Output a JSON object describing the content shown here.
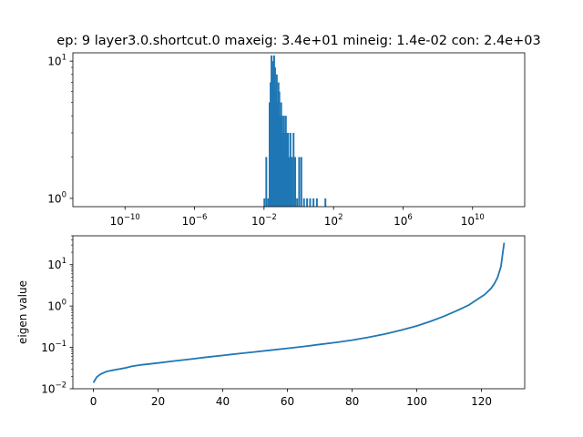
{
  "title": "ep: 9 layer3.0.shortcut.0 maxeig: 3.4e+01 mineig: 1.4e-02 con: 2.4e+03",
  "colors": {
    "series": "#1f77b4",
    "axis": "#000000",
    "background": "#ffffff"
  },
  "chart_data": [
    {
      "type": "bar",
      "subtype": "histogram",
      "xscale": "log",
      "yscale": "log",
      "xlim": [
        1e-13,
        10000000000000.0
      ],
      "ylim": [
        0.87,
        11.5
      ],
      "xticks": [
        {
          "value": 1e-10,
          "base": "10",
          "exp": "−10"
        },
        {
          "value": 1e-06,
          "base": "10",
          "exp": "−6"
        },
        {
          "value": 0.01,
          "base": "10",
          "exp": "−2"
        },
        {
          "value": 100.0,
          "base": "10",
          "exp": "2"
        },
        {
          "value": 1000000.0,
          "base": "10",
          "exp": "6"
        },
        {
          "value": 10000000000.0,
          "base": "10",
          "exp": "10"
        }
      ],
      "yticks": [
        {
          "value": 1,
          "base": "10",
          "exp": "0"
        },
        {
          "value": 10,
          "base": "10",
          "exp": "1"
        }
      ],
      "bins": [
        {
          "x": 0.0105,
          "count": 1
        },
        {
          "x": 0.0135,
          "count": 2
        },
        {
          "x": 0.0175,
          "count": 1
        },
        {
          "x": 0.021,
          "count": 5
        },
        {
          "x": 0.024,
          "count": 7
        },
        {
          "x": 0.027,
          "count": 11
        },
        {
          "x": 0.03,
          "count": 10
        },
        {
          "x": 0.034,
          "count": 8
        },
        {
          "x": 0.038,
          "count": 11
        },
        {
          "x": 0.043,
          "count": 9
        },
        {
          "x": 0.048,
          "count": 6
        },
        {
          "x": 0.054,
          "count": 8
        },
        {
          "x": 0.061,
          "count": 5
        },
        {
          "x": 0.068,
          "count": 7
        },
        {
          "x": 0.076,
          "count": 6
        },
        {
          "x": 0.086,
          "count": 4
        },
        {
          "x": 0.097,
          "count": 5
        },
        {
          "x": 0.11,
          "count": 4
        },
        {
          "x": 0.125,
          "count": 3
        },
        {
          "x": 0.14,
          "count": 4
        },
        {
          "x": 0.16,
          "count": 3
        },
        {
          "x": 0.18,
          "count": 4
        },
        {
          "x": 0.21,
          "count": 3
        },
        {
          "x": 0.24,
          "count": 3
        },
        {
          "x": 0.28,
          "count": 2
        },
        {
          "x": 0.33,
          "count": 3
        },
        {
          "x": 0.4,
          "count": 2
        },
        {
          "x": 0.5,
          "count": 3
        },
        {
          "x": 0.62,
          "count": 2
        },
        {
          "x": 0.8,
          "count": 1
        },
        {
          "x": 1.05,
          "count": 2
        },
        {
          "x": 1.4,
          "count": 2
        },
        {
          "x": 2.0,
          "count": 1
        },
        {
          "x": 3.0,
          "count": 1
        },
        {
          "x": 4.5,
          "count": 1
        },
        {
          "x": 7.0,
          "count": 1
        },
        {
          "x": 11.0,
          "count": 1
        },
        {
          "x": 34.0,
          "count": 1
        }
      ]
    },
    {
      "type": "line",
      "yscale": "log",
      "xlim": [
        -6.35,
        133.35
      ],
      "ylim": [
        0.01,
        50
      ],
      "ylabel": "eigen value",
      "xticks": [
        0,
        20,
        40,
        60,
        80,
        100,
        120
      ],
      "yticks": [
        {
          "value": 0.01,
          "base": "10",
          "exp": "−2"
        },
        {
          "value": 0.1,
          "base": "10",
          "exp": "−1"
        },
        {
          "value": 1,
          "base": "10",
          "exp": "0"
        },
        {
          "value": 10,
          "base": "10",
          "exp": "1"
        }
      ],
      "series": [
        {
          "points": [
            [
              0,
              0.014
            ],
            [
              1,
              0.019
            ],
            [
              2,
              0.022
            ],
            [
              3,
              0.024
            ],
            [
              4,
              0.026
            ],
            [
              5,
              0.027
            ],
            [
              6,
              0.028
            ],
            [
              8,
              0.03
            ],
            [
              10,
              0.032
            ],
            [
              12,
              0.035
            ],
            [
              15,
              0.038
            ],
            [
              20,
              0.042
            ],
            [
              25,
              0.047
            ],
            [
              30,
              0.052
            ],
            [
              35,
              0.058
            ],
            [
              40,
              0.064
            ],
            [
              45,
              0.071
            ],
            [
              50,
              0.078
            ],
            [
              55,
              0.086
            ],
            [
              60,
              0.095
            ],
            [
              65,
              0.105
            ],
            [
              70,
              0.118
            ],
            [
              75,
              0.132
            ],
            [
              80,
              0.15
            ],
            [
              85,
              0.175
            ],
            [
              90,
              0.21
            ],
            [
              95,
              0.26
            ],
            [
              100,
              0.33
            ],
            [
              104,
              0.42
            ],
            [
              108,
              0.55
            ],
            [
              112,
              0.75
            ],
            [
              116,
              1.05
            ],
            [
              119,
              1.5
            ],
            [
              121,
              1.9
            ],
            [
              123,
              2.7
            ],
            [
              124,
              3.5
            ],
            [
              125,
              5.0
            ],
            [
              126,
              9.0
            ],
            [
              127,
              34.0
            ]
          ]
        }
      ]
    }
  ]
}
